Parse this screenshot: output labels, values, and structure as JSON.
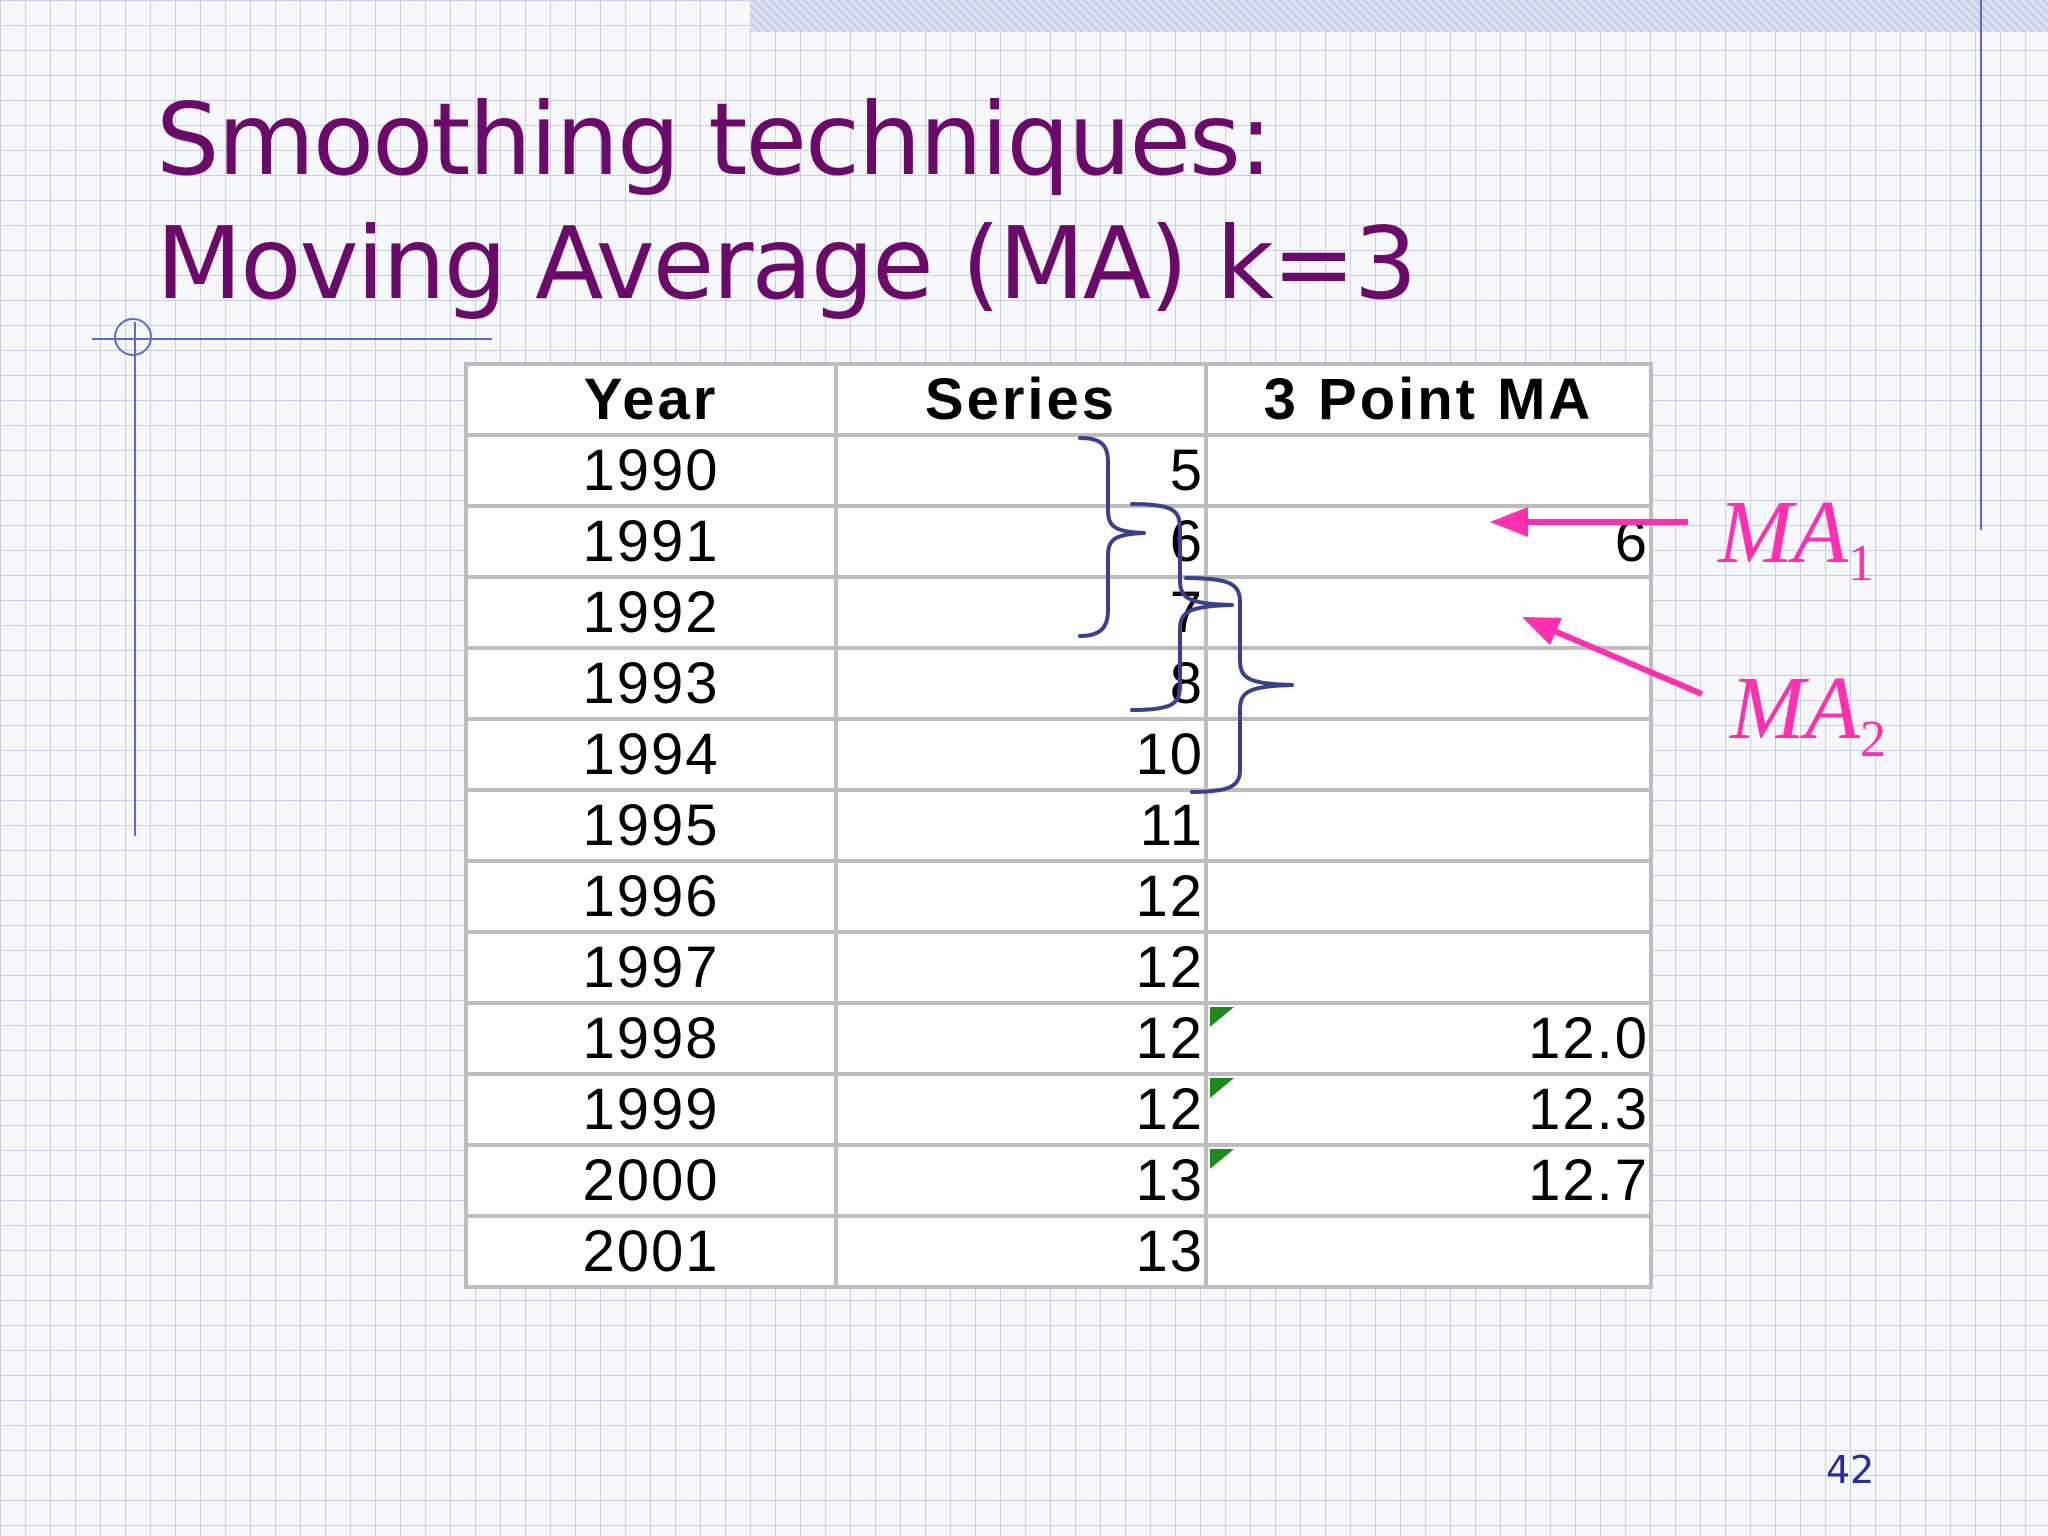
{
  "slide": {
    "title_line1": "Smoothing techniques:",
    "title_line2": "Moving Average (MA) k=3",
    "page_number": "42"
  },
  "table": {
    "headers": [
      "Year",
      "Series",
      "3 Point MA"
    ],
    "rows": [
      {
        "year": "1990",
        "series": "5",
        "ma": ""
      },
      {
        "year": "1991",
        "series": "6",
        "ma": "6"
      },
      {
        "year": "1992",
        "series": "7",
        "ma": ""
      },
      {
        "year": "1993",
        "series": "8",
        "ma": ""
      },
      {
        "year": "1994",
        "series": "10",
        "ma": ""
      },
      {
        "year": "1995",
        "series": "11",
        "ma": ""
      },
      {
        "year": "1996",
        "series": "12",
        "ma": ""
      },
      {
        "year": "1997",
        "series": "12",
        "ma": ""
      },
      {
        "year": "1998",
        "series": "12",
        "ma": "12.0"
      },
      {
        "year": "1999",
        "series": "12",
        "ma": "12.3"
      },
      {
        "year": "2000",
        "series": "13",
        "ma": "12.7"
      },
      {
        "year": "2001",
        "series": "13",
        "ma": ""
      }
    ]
  },
  "annotations": {
    "ma1": {
      "base": "MA",
      "sub": "1"
    },
    "ma2": {
      "base": "MA",
      "sub": "2"
    }
  },
  "colors": {
    "title": "#6b0a6b",
    "annotation": "#ff2fb0",
    "brace": "#3b3f8f",
    "grid": "#bdbdbd"
  }
}
